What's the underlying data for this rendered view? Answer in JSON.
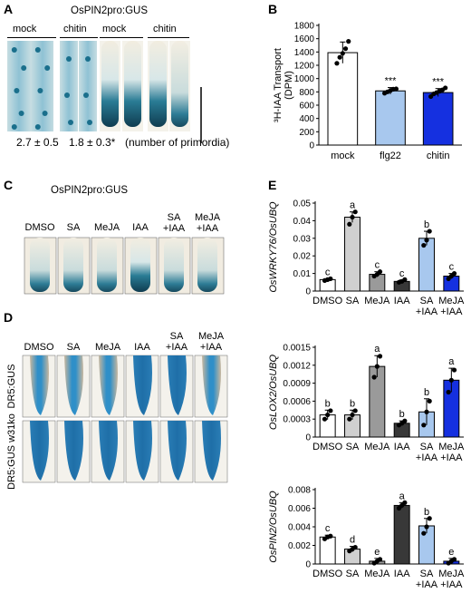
{
  "panelA": {
    "letter": "A",
    "title": "OsPIN2pro:GUS",
    "groups": [
      "mock",
      "chitin",
      "mock",
      "chitin"
    ],
    "counts": {
      "mock": "2.7 ± 0.5",
      "chitin": "1.8 ± 0.3*",
      "unit": "(number of primordia)"
    }
  },
  "panelB": {
    "letter": "B"
  },
  "panelC": {
    "letter": "C",
    "title": "OsPIN2pro:GUS",
    "treatments": [
      "DMSO",
      "SA",
      "MeJA",
      "IAA",
      "SA\n+IAA",
      "MeJA\n+IAA"
    ]
  },
  "panelD": {
    "letter": "D",
    "treatments": [
      "DMSO",
      "SA",
      "MeJA",
      "IAA",
      "SA\n+IAA",
      "MeJA\n+IAA"
    ],
    "rows": [
      "DR5:GUS",
      "DR5:GUS w31ko"
    ]
  },
  "panelE": {
    "letter": "E"
  },
  "colors": {
    "white": "#ffffff",
    "lightgray": "#d0d0d0",
    "gray": "#9a9a9a",
    "dark": "#383838",
    "lightblue": "#a8c8ee",
    "blue": "#1530e0",
    "gus": "#1a6f8c",
    "gusDeep": "#123f52"
  },
  "chart_data": [
    {
      "id": "B",
      "type": "bar",
      "ylabel": "³H-IAA Transport\n(DPM)",
      "ylim": [
        0,
        1800
      ],
      "yticks": [
        0,
        200,
        400,
        600,
        800,
        1000,
        1200,
        1400,
        1600,
        1800
      ],
      "categories": [
        "mock",
        "flg22",
        "chitin"
      ],
      "values": [
        1390,
        815,
        790
      ],
      "errors": [
        160,
        50,
        60
      ],
      "significance": [
        "",
        "***",
        "***"
      ],
      "points": [
        [
          1230,
          1320,
          1380,
          1450,
          1560
        ],
        [
          780,
          800,
          820,
          840,
          845
        ],
        [
          730,
          770,
          790,
          810,
          830,
          860
        ]
      ],
      "colors": [
        "#ffffff",
        "#a8c8ee",
        "#1530e0"
      ]
    },
    {
      "id": "E1",
      "type": "bar",
      "ylabel": "OsWRKY76/OsUBQ",
      "ylim": [
        0,
        0.05
      ],
      "yticks": [
        "0",
        "0.01",
        "0.02",
        "0.03",
        "0.04",
        "0.05"
      ],
      "categories": [
        "DMSO",
        "SA",
        "MeJA",
        "IAA",
        "SA\n+IAA",
        "MeJA\n+IAA"
      ],
      "values": [
        0.0065,
        0.042,
        0.0095,
        0.0055,
        0.03,
        0.0085
      ],
      "errors": [
        0.0005,
        0.003,
        0.0015,
        0.0008,
        0.004,
        0.0015
      ],
      "letters": [
        "c",
        "a",
        "c",
        "c",
        "b",
        "c"
      ],
      "points": [
        [
          0.006,
          0.0065,
          0.007
        ],
        [
          0.038,
          0.042,
          0.045
        ],
        [
          0.0085,
          0.0095,
          0.011
        ],
        [
          0.005,
          0.0055,
          0.0065
        ],
        [
          0.026,
          0.029,
          0.034
        ],
        [
          0.007,
          0.0085,
          0.01
        ]
      ],
      "colors": [
        "#ffffff",
        "#d0d0d0",
        "#9a9a9a",
        "#383838",
        "#a8c8ee",
        "#1530e0"
      ]
    },
    {
      "id": "E2",
      "type": "bar",
      "ylabel": "OsLOX2/OsUBQ",
      "ylim": [
        0,
        0.0015
      ],
      "yticks": [
        "0",
        "0.0003",
        "0.0006",
        "0.0009",
        "0.0012",
        "0.0015"
      ],
      "categories": [
        "DMSO",
        "SA",
        "MeJA",
        "IAA",
        "SA\n+IAA",
        "MeJA\n+IAA"
      ],
      "values": [
        0.00037,
        0.00037,
        0.00118,
        0.00023,
        0.00042,
        0.00095
      ],
      "errors": [
        8e-05,
        8e-05,
        0.00018,
        4e-05,
        0.00022,
        0.0002
      ],
      "letters": [
        "b",
        "b",
        "a",
        "b",
        "b",
        "a"
      ],
      "points": [
        [
          0.0003,
          0.00037,
          0.00044
        ],
        [
          0.0003,
          0.00037,
          0.00044
        ],
        [
          0.001,
          0.00118,
          0.00135
        ],
        [
          0.0002,
          0.00023,
          0.00027
        ],
        [
          0.0002,
          0.00042,
          0.0006
        ],
        [
          0.00075,
          0.00095,
          0.00112
        ]
      ],
      "colors": [
        "#ffffff",
        "#d0d0d0",
        "#9a9a9a",
        "#383838",
        "#a8c8ee",
        "#1530e0"
      ]
    },
    {
      "id": "E3",
      "type": "bar",
      "ylabel": "OsPIN2/OsUBQ",
      "ylim": [
        0,
        0.008
      ],
      "yticks": [
        "0",
        "0.002",
        "0.004",
        "0.006",
        "0.008"
      ],
      "categories": [
        "DMSO",
        "SA",
        "MeJA",
        "IAA",
        "SA\n+IAA",
        "MeJA\n+IAA"
      ],
      "values": [
        0.0029,
        0.0016,
        0.0003,
        0.0063,
        0.0041,
        0.0003
      ],
      "errors": [
        0.0002,
        0.0003,
        0.0003,
        0.0003,
        0.0008,
        0.0003
      ],
      "letters": [
        "c",
        "d",
        "e",
        "a",
        "b",
        "e"
      ],
      "points": [
        [
          0.0027,
          0.0029,
          0.003
        ],
        [
          0.0014,
          0.0016,
          0.0018
        ],
        [
          0.0001,
          0.0003,
          0.0005
        ],
        [
          0.006,
          0.0063,
          0.0066
        ],
        [
          0.0033,
          0.004,
          0.0049
        ],
        [
          0.0001,
          0.0003,
          0.0005
        ]
      ],
      "colors": [
        "#ffffff",
        "#d0d0d0",
        "#9a9a9a",
        "#383838",
        "#a8c8ee",
        "#1530e0"
      ]
    }
  ]
}
